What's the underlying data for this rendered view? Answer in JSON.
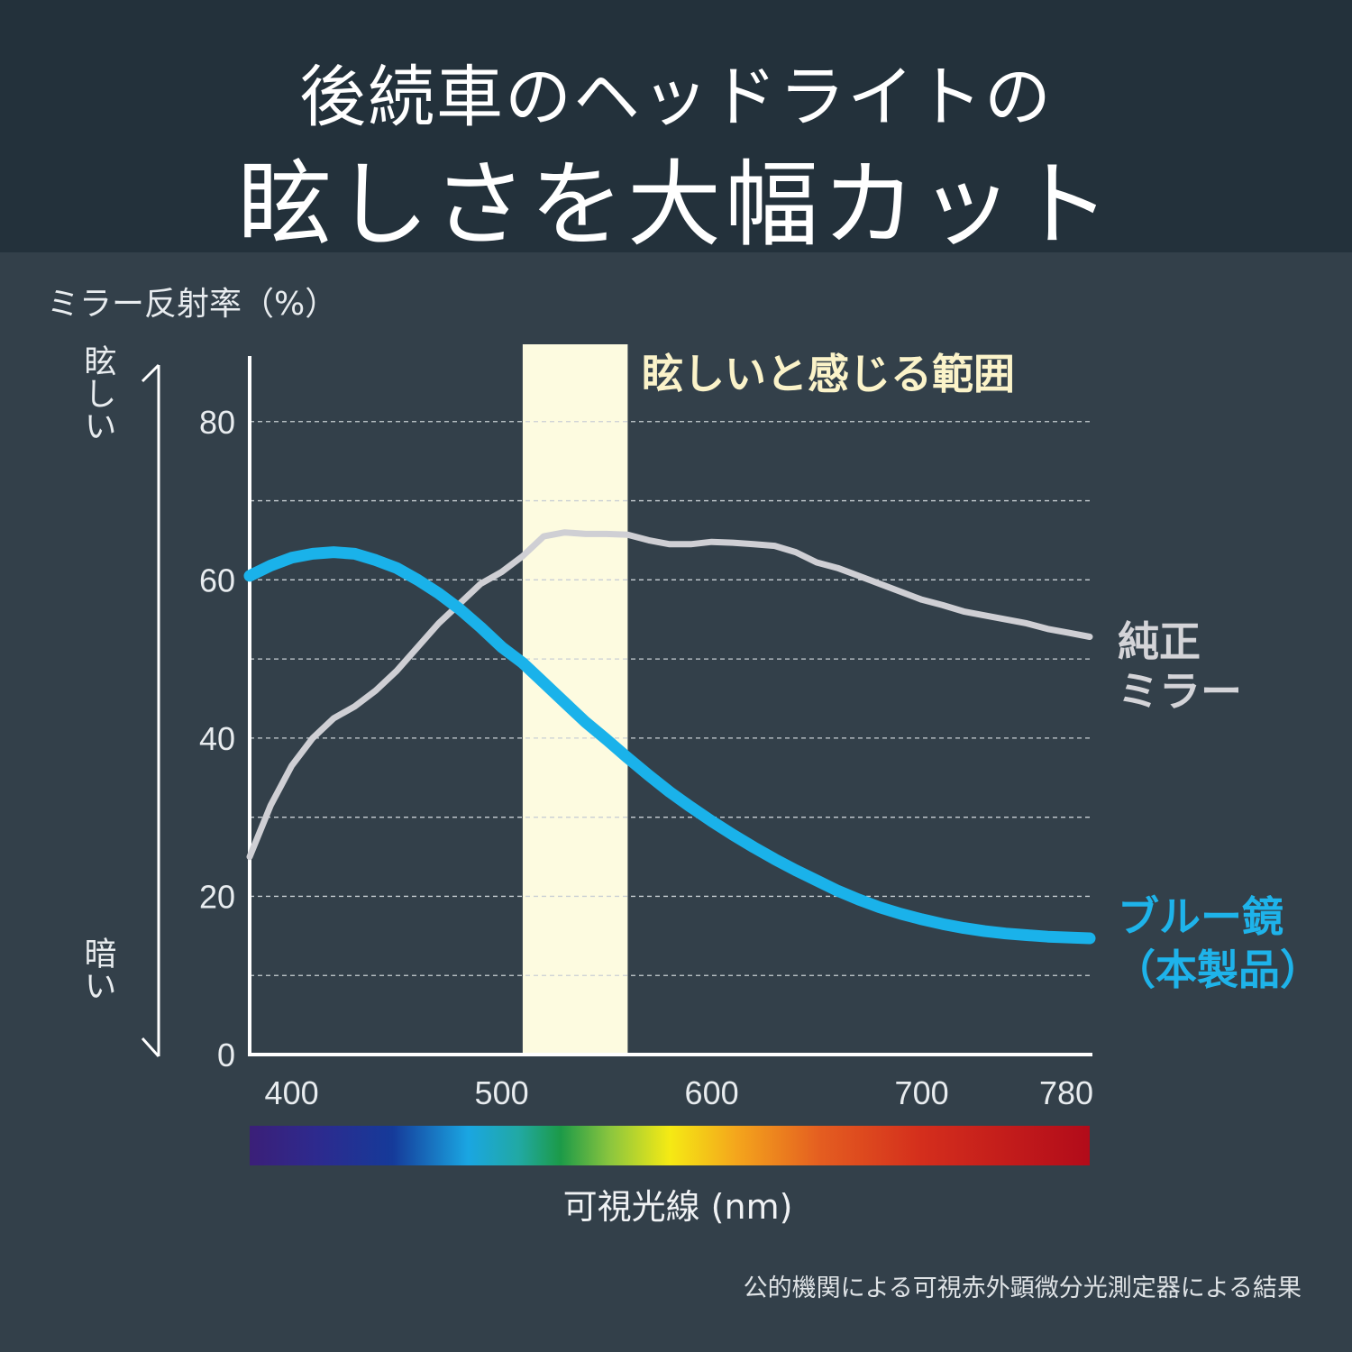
{
  "header": {
    "title_line1": "後続車のヘッドライトの",
    "title_line2": "眩しさを大幅カット"
  },
  "chart_data": {
    "type": "line",
    "ylabel": "ミラー反射率（%）",
    "xlabel": "可視光線 (nm)",
    "xlim": [
      380,
      780
    ],
    "ylim": [
      0,
      90
    ],
    "x_ticks": [
      400,
      500,
      600,
      700,
      780
    ],
    "y_ticks": [
      0,
      20,
      40,
      60,
      80
    ],
    "grid_y": [
      10,
      20,
      30,
      40,
      50,
      60,
      70,
      80
    ],
    "grid": "dashed horizontal",
    "highlight_band": {
      "from": 510,
      "to": 560,
      "label": "眩しいと感じる範囲",
      "color": "#fdfbe0"
    },
    "y_axis_top_label": "眩しい",
    "y_axis_bottom_label": "暗い",
    "spectrum_bar": true,
    "series": [
      {
        "name": "純正ミラー",
        "color": "#cfcfd4",
        "x": [
          380,
          390,
          400,
          410,
          420,
          430,
          440,
          450,
          460,
          470,
          480,
          490,
          500,
          510,
          520,
          530,
          540,
          550,
          560,
          570,
          580,
          590,
          600,
          610,
          620,
          630,
          640,
          650,
          660,
          670,
          680,
          690,
          700,
          710,
          720,
          730,
          740,
          750,
          760,
          770,
          780
        ],
        "y": [
          25,
          31.5,
          36.5,
          40,
          42.5,
          44,
          46,
          48.5,
          51.5,
          54.5,
          57,
          59.5,
          61,
          63,
          65.5,
          66,
          65.8,
          65.8,
          65.7,
          65,
          64.5,
          64.5,
          64.8,
          64.7,
          64.5,
          64.3,
          63.5,
          62.2,
          61.5,
          60.5,
          59.5,
          58.5,
          57.5,
          56.8,
          56,
          55.5,
          55,
          54.5,
          53.8,
          53.3,
          52.8
        ]
      },
      {
        "name": "ブルー鏡（本製品）",
        "color": "#1ab2ea",
        "x": [
          380,
          390,
          400,
          410,
          420,
          430,
          440,
          450,
          460,
          470,
          480,
          490,
          500,
          510,
          520,
          530,
          540,
          550,
          560,
          570,
          580,
          590,
          600,
          610,
          620,
          630,
          640,
          650,
          660,
          670,
          680,
          690,
          700,
          710,
          720,
          730,
          740,
          750,
          760,
          770,
          780
        ],
        "y": [
          60.5,
          61.8,
          62.8,
          63.3,
          63.5,
          63.3,
          62.5,
          61.5,
          60,
          58.3,
          56.3,
          54,
          51.5,
          49.5,
          47,
          44.5,
          42,
          39.8,
          37.5,
          35.3,
          33.2,
          31.3,
          29.5,
          27.8,
          26.2,
          24.7,
          23.3,
          22,
          20.7,
          19.6,
          18.6,
          17.8,
          17.1,
          16.5,
          16,
          15.6,
          15.3,
          15.1,
          14.9,
          14.8,
          14.7
        ]
      }
    ],
    "series_labels": {
      "gray_line1": "純正",
      "gray_line2": "ミラー",
      "blue_line1": "ブルー鏡",
      "blue_line2": "（本製品）"
    },
    "footnote": "公的機関による可視赤外顕微分光測定器による結果"
  }
}
